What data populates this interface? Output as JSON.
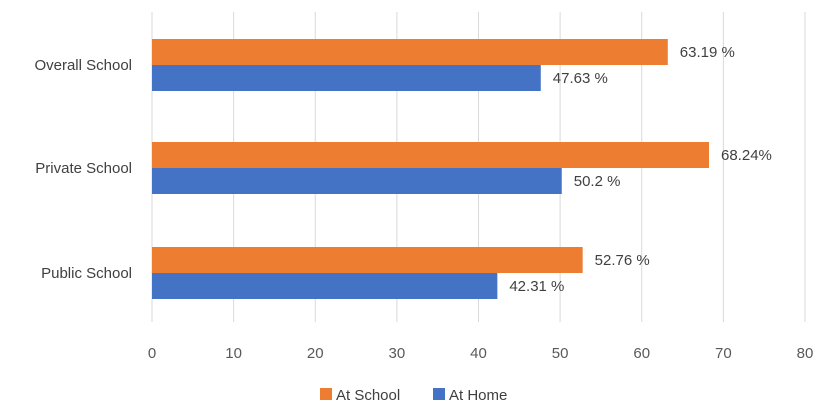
{
  "chart_data": {
    "type": "bar",
    "orientation": "horizontal",
    "title": "",
    "xlabel": "",
    "ylabel": "",
    "categories": [
      "Overall School",
      "Private School",
      "Public School"
    ],
    "series": [
      {
        "name": "At School",
        "color": "#ED7D31",
        "values": [
          63.19,
          68.24,
          52.76
        ],
        "labels": [
          "63.19 %",
          "68.24%",
          "52.76 %"
        ]
      },
      {
        "name": "At Home",
        "color": "#4472C4",
        "values": [
          47.63,
          50.2,
          42.31
        ],
        "labels": [
          "47.63 %",
          "50.2 %",
          "42.31 %"
        ]
      }
    ],
    "xlim": [
      0,
      80
    ],
    "xticks": [
      0,
      10,
      20,
      30,
      40,
      50,
      60,
      70,
      80
    ],
    "grid": true,
    "legend_position": "bottom",
    "gridline_color": "#D9D9D9"
  }
}
